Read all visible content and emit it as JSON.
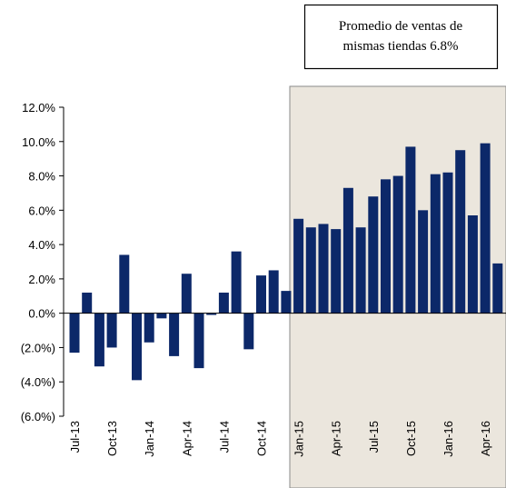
{
  "chart_data": {
    "type": "bar",
    "annotation": [
      "Promedio de ventas de",
      "mismas tiendas 6.8%"
    ],
    "categories": [
      "Jul-13",
      null,
      null,
      "Oct-13",
      null,
      null,
      "Jan-14",
      null,
      null,
      "Apr-14",
      null,
      null,
      "Jul-14",
      null,
      null,
      "Oct-14",
      null,
      null,
      "Jan-15",
      null,
      null,
      "Apr-15",
      null,
      null,
      "Jul-15",
      null,
      null,
      "Oct-15",
      null,
      null,
      "Jan-16",
      null,
      null,
      "Apr-16",
      null
    ],
    "values": [
      -2.3,
      1.2,
      -3.1,
      -2.0,
      3.4,
      -3.9,
      -1.7,
      -0.3,
      -2.5,
      2.3,
      -3.2,
      -0.1,
      1.2,
      3.6,
      -2.1,
      2.2,
      2.5,
      1.3,
      5.5,
      5.0,
      5.2,
      4.9,
      7.3,
      5.0,
      6.8,
      7.8,
      8.0,
      9.7,
      6.0,
      8.1,
      8.2,
      9.5,
      5.7,
      9.9,
      2.9
    ],
    "color": "#0c2869",
    "ylim": [
      -6,
      12
    ],
    "yticks": [
      {
        "value": -6,
        "label": "(6.0%)"
      },
      {
        "value": -4,
        "label": "(4.0%)"
      },
      {
        "value": -2,
        "label": "(2.0%)"
      },
      {
        "value": 0,
        "label": "0.0%"
      },
      {
        "value": 2,
        "label": "2.0%"
      },
      {
        "value": 4,
        "label": "4.0%"
      },
      {
        "value": 6,
        "label": "6.0%"
      },
      {
        "value": 8,
        "label": "8.0%"
      },
      {
        "value": 10,
        "label": "10.0%"
      },
      {
        "value": 12,
        "label": "12.0%"
      }
    ],
    "grid": false
  }
}
